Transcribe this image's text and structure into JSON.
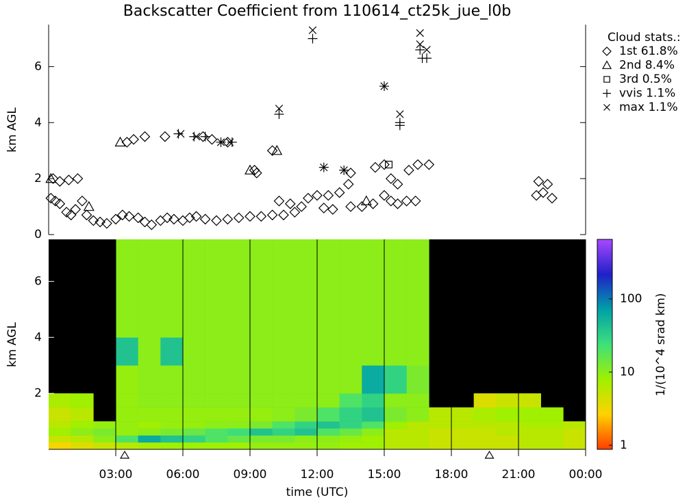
{
  "chart_data": [
    {
      "type": "scatter",
      "title": "Backscatter Coefficient from 110614_ct25k_jue_l0b",
      "y_label": "km AGL",
      "xlim": [
        0,
        24
      ],
      "ylim": [
        0,
        7.5
      ],
      "yticks": [
        0,
        2,
        4,
        6
      ],
      "legend_title": "Cloud stats.:",
      "series": [
        {
          "name": "1st 61.8%",
          "marker": "diamond",
          "color": "#000000",
          "x": [
            0.1,
            0.3,
            0.5,
            0.8,
            1.0,
            1.2,
            0.2,
            0.5,
            0.9,
            1.3,
            1.5,
            1.7,
            2.0,
            2.3,
            2.6,
            3.0,
            3.3,
            3.6,
            4.0,
            4.3,
            4.6,
            5.0,
            5.3,
            5.6,
            6.0,
            6.3,
            6.6,
            7.0,
            7.5,
            8.0,
            8.5,
            9.0,
            9.5,
            10.0,
            10.5,
            11.0,
            11.3,
            11.6,
            12.0,
            12.5,
            13.0,
            13.5,
            14.0,
            14.5,
            15.0,
            15.3,
            15.6,
            16.0,
            16.4,
            3.5,
            3.8,
            4.3,
            5.2,
            6.9,
            7.3,
            8.0,
            9.2,
            9.3,
            10.0,
            13.4,
            13.5,
            14.6,
            15.0,
            15.3,
            15.6,
            16.1,
            16.5,
            17.0,
            10.3,
            10.8,
            12.3,
            12.7,
            21.9,
            22.1,
            22.3,
            22.5,
            21.8
          ],
          "values": [
            1.3,
            1.2,
            1.1,
            0.8,
            0.7,
            0.9,
            2.0,
            1.9,
            1.95,
            2.0,
            1.2,
            0.7,
            0.5,
            0.45,
            0.4,
            0.55,
            0.7,
            0.65,
            0.6,
            0.45,
            0.35,
            0.5,
            0.6,
            0.55,
            0.5,
            0.6,
            0.65,
            0.55,
            0.5,
            0.55,
            0.6,
            0.65,
            0.65,
            0.7,
            0.7,
            0.8,
            1.0,
            1.3,
            1.4,
            1.4,
            1.5,
            1.0,
            1.0,
            1.1,
            1.4,
            1.2,
            1.1,
            1.2,
            1.2,
            3.3,
            3.4,
            3.5,
            3.5,
            3.5,
            3.4,
            3.3,
            2.3,
            2.2,
            3.0,
            1.8,
            2.2,
            2.4,
            2.5,
            2.0,
            1.8,
            2.3,
            2.5,
            2.5,
            1.2,
            1.1,
            0.95,
            0.9,
            1.9,
            1.5,
            1.8,
            1.3,
            1.4
          ]
        },
        {
          "name": "2nd 8.4%",
          "marker": "triangle",
          "color": "#000000",
          "x": [
            0.1,
            1.8,
            3.2,
            9.0,
            10.2,
            14.2
          ],
          "values": [
            2.0,
            1.0,
            3.3,
            2.3,
            3.0,
            1.2
          ]
        },
        {
          "name": "3rd 0.5%",
          "marker": "square",
          "color": "#000000",
          "x": [
            15.2
          ],
          "values": [
            2.5
          ]
        },
        {
          "name": "vvis 1.1%",
          "marker": "plus",
          "color": "#000000",
          "x": [
            5.8,
            6.5,
            7.0,
            8.2,
            10.3,
            11.8,
            12.3,
            13.2,
            15.0,
            15.7,
            15.7,
            16.7,
            16.9,
            16.6,
            7.7
          ],
          "values": [
            3.6,
            3.5,
            3.5,
            3.3,
            4.3,
            7.0,
            2.4,
            2.3,
            5.3,
            3.9,
            4.0,
            6.3,
            6.3,
            6.6,
            3.3
          ]
        },
        {
          "name": "max 1.1%",
          "marker": "cross",
          "color": "#000000",
          "x": [
            5.9,
            6.6,
            8.1,
            10.3,
            11.8,
            12.3,
            13.2,
            15.0,
            15.7,
            16.6,
            16.6,
            16.9,
            7.7
          ],
          "values": [
            3.6,
            3.5,
            3.3,
            4.5,
            7.3,
            2.4,
            2.3,
            5.3,
            4.3,
            7.2,
            6.8,
            6.6,
            3.3
          ]
        }
      ]
    },
    {
      "type": "heatmap",
      "y_label": "km AGL",
      "x_label": "time (UTC)",
      "colorbar_label": "1/(10^4 srad km)",
      "xlim": [
        0,
        24
      ],
      "ylim": [
        0,
        7.5
      ],
      "xticks": [
        {
          "value": 3,
          "label": "03:00"
        },
        {
          "value": 6,
          "label": "06:00"
        },
        {
          "value": 9,
          "label": "09:00"
        },
        {
          "value": 12,
          "label": "12:00"
        },
        {
          "value": 15,
          "label": "15:00"
        },
        {
          "value": 18,
          "label": "18:00"
        },
        {
          "value": 21,
          "label": "21:00"
        },
        {
          "value": 24,
          "label": "00:00"
        }
      ],
      "yticks": [
        2,
        4,
        6
      ],
      "clim": [
        0.88,
        650
      ],
      "cticks": [
        1,
        10,
        100
      ],
      "log_color": true,
      "colormap": [
        "#ff3c00",
        "#ffd200",
        "#a0f000",
        "#3ee07a",
        "#00a0a8",
        "#2020c8",
        "#a848ff"
      ],
      "background": "#000000",
      "event_markers_x": [
        3.4,
        19.7
      ],
      "xbins": [
        0,
        1,
        2,
        3,
        4,
        5,
        6,
        7,
        8,
        9,
        10,
        11,
        12,
        13,
        14,
        15,
        16,
        17,
        18,
        19,
        20,
        21,
        22,
        23,
        24
      ],
      "ybins": [
        0,
        0.25,
        0.5,
        0.75,
        1,
        1.5,
        2,
        3,
        4,
        5,
        6,
        7.5
      ],
      "values": [
        [
          3,
          4,
          5,
          6,
          7,
          8,
          8,
          8,
          8,
          9,
          9,
          9,
          9,
          8,
          8,
          6,
          6,
          5,
          5,
          5,
          5,
          6,
          6,
          5
        ],
        [
          5,
          6,
          10,
          20,
          60,
          40,
          30,
          20,
          15,
          12,
          12,
          10,
          10,
          9,
          8,
          6,
          6,
          5,
          5,
          5,
          5,
          6,
          6,
          5
        ],
        [
          8,
          10,
          12,
          9,
          10,
          12,
          15,
          20,
          25,
          40,
          30,
          40,
          20,
          15,
          10,
          6,
          6,
          5,
          5,
          5,
          6,
          6,
          6,
          5
        ],
        [
          6,
          8,
          9,
          9,
          8,
          9,
          9,
          10,
          10,
          12,
          20,
          30,
          40,
          30,
          20,
          8,
          6,
          6,
          6,
          6,
          6,
          7,
          7,
          6
        ],
        [
          5,
          6,
          null,
          9,
          9,
          9,
          9,
          9,
          9,
          9,
          10,
          12,
          20,
          30,
          40,
          12,
          10,
          6,
          6,
          7,
          8,
          8,
          8,
          null
        ],
        [
          7,
          8,
          null,
          9,
          10,
          10,
          10,
          10,
          10,
          10,
          10,
          10,
          10,
          20,
          30,
          10,
          10,
          null,
          null,
          4,
          5,
          5,
          null,
          null
        ],
        [
          null,
          null,
          null,
          9,
          10,
          10,
          10,
          10,
          10,
          10,
          10,
          10,
          10,
          10,
          60,
          30,
          12,
          null,
          null,
          null,
          null,
          null,
          null,
          null
        ],
        [
          null,
          null,
          null,
          40,
          10,
          40,
          10,
          10,
          10,
          10,
          10,
          10,
          10,
          10,
          10,
          10,
          10,
          null,
          null,
          null,
          null,
          null,
          null,
          null
        ],
        [
          null,
          null,
          null,
          10,
          10,
          10,
          10,
          10,
          10,
          10,
          10,
          10,
          10,
          10,
          10,
          10,
          10,
          null,
          null,
          null,
          null,
          null,
          null,
          null
        ],
        [
          null,
          null,
          null,
          10,
          10,
          10,
          10,
          10,
          10,
          10,
          10,
          10,
          10,
          10,
          10,
          10,
          10,
          null,
          null,
          null,
          null,
          null,
          null,
          null
        ],
        [
          null,
          null,
          null,
          10,
          10,
          10,
          10,
          10,
          10,
          10,
          10,
          10,
          10,
          10,
          10,
          10,
          10,
          null,
          null,
          null,
          null,
          null,
          null,
          null
        ]
      ]
    }
  ]
}
